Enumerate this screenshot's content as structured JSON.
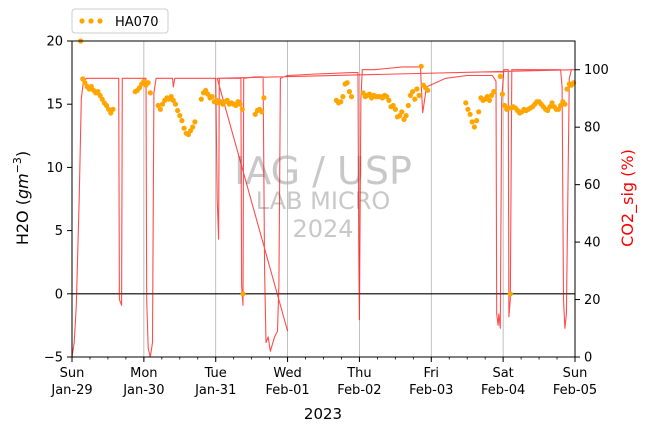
{
  "chart_data": {
    "type": "scatter+line",
    "legend": {
      "position": "top-left",
      "entries": [
        {
          "label": "HA070",
          "color": "#FFA500",
          "style": "dots"
        }
      ]
    },
    "watermark": [
      "IAG / USP",
      "LAB MICRO",
      "2024"
    ],
    "x_axis": {
      "label": "2023",
      "range_days": [
        0,
        7
      ],
      "ticks": [
        {
          "day": 0,
          "dow": "Sun",
          "date": "Jan-29"
        },
        {
          "day": 1,
          "dow": "Mon",
          "date": "Jan-30"
        },
        {
          "day": 2,
          "dow": "Tue",
          "date": "Jan-31"
        },
        {
          "day": 3,
          "dow": "Wed",
          "date": "Feb-01"
        },
        {
          "day": 4,
          "dow": "Thu",
          "date": "Feb-02"
        },
        {
          "day": 5,
          "dow": "Fri",
          "date": "Feb-03"
        },
        {
          "day": 6,
          "dow": "Sat",
          "date": "Feb-04"
        },
        {
          "day": 7,
          "dow": "Sun",
          "date": "Feb-05"
        }
      ],
      "minor_ticks_per_day": 4,
      "grid": true
    },
    "y_left": {
      "label": "H2O (gm⁻³)",
      "label_main": "H2O (",
      "label_unit": "gm",
      "label_exp": "−3",
      "label_close": ")",
      "range": [
        -5,
        20
      ],
      "ticks": [
        -5,
        0,
        5,
        10,
        15,
        20
      ],
      "zero_line": true,
      "color": "#000000"
    },
    "y_right": {
      "label": "CO2_sig (%)",
      "range": [
        0,
        110
      ],
      "ticks": [
        0,
        20,
        40,
        60,
        80,
        100
      ],
      "color": "#FF0000"
    },
    "series": [
      {
        "name": "HA070",
        "axis": "left",
        "type": "scatter",
        "color": "#FFA500",
        "points": [
          [
            0.12,
            20.0
          ],
          [
            0.15,
            17.0
          ],
          [
            0.18,
            16.7
          ],
          [
            0.21,
            16.4
          ],
          [
            0.24,
            16.2
          ],
          [
            0.27,
            16.4
          ],
          [
            0.3,
            16.1
          ],
          [
            0.33,
            15.9
          ],
          [
            0.36,
            16.0
          ],
          [
            0.39,
            15.7
          ],
          [
            0.42,
            15.4
          ],
          [
            0.45,
            15.1
          ],
          [
            0.48,
            14.9
          ],
          [
            0.51,
            14.6
          ],
          [
            0.54,
            14.3
          ],
          [
            0.57,
            14.6
          ],
          [
            0.88,
            16.0
          ],
          [
            0.91,
            16.1
          ],
          [
            0.94,
            16.3
          ],
          [
            0.97,
            16.6
          ],
          [
            1.0,
            16.8
          ],
          [
            1.03,
            16.5
          ],
          [
            1.06,
            16.7
          ],
          [
            1.09,
            15.9
          ],
          [
            1.2,
            14.9
          ],
          [
            1.23,
            14.6
          ],
          [
            1.26,
            15.0
          ],
          [
            1.29,
            15.3
          ],
          [
            1.32,
            15.5
          ],
          [
            1.35,
            15.4
          ],
          [
            1.38,
            15.6
          ],
          [
            1.41,
            15.3
          ],
          [
            1.44,
            15.0
          ],
          [
            1.47,
            14.5
          ],
          [
            1.5,
            14.1
          ],
          [
            1.53,
            13.7
          ],
          [
            1.56,
            13.1
          ],
          [
            1.59,
            12.7
          ],
          [
            1.62,
            12.6
          ],
          [
            1.65,
            12.9
          ],
          [
            1.68,
            13.2
          ],
          [
            1.71,
            13.6
          ],
          [
            1.8,
            15.4
          ],
          [
            1.83,
            15.9
          ],
          [
            1.86,
            16.1
          ],
          [
            1.89,
            15.8
          ],
          [
            1.92,
            15.5
          ],
          [
            1.95,
            15.6
          ],
          [
            1.98,
            15.2
          ],
          [
            2.01,
            15.3
          ],
          [
            2.04,
            15.1
          ],
          [
            2.07,
            15.2
          ],
          [
            2.1,
            15.0
          ],
          [
            2.13,
            15.2
          ],
          [
            2.16,
            15.3
          ],
          [
            2.19,
            15.0
          ],
          [
            2.22,
            15.1
          ],
          [
            2.25,
            15.0
          ],
          [
            2.28,
            14.9
          ],
          [
            2.31,
            15.2
          ],
          [
            2.34,
            15.0
          ],
          [
            2.37,
            14.6
          ],
          [
            2.38,
            0.0
          ],
          [
            2.55,
            14.2
          ],
          [
            2.58,
            14.5
          ],
          [
            2.61,
            14.6
          ],
          [
            2.64,
            14.4
          ],
          [
            2.67,
            15.5
          ],
          [
            3.68,
            15.3
          ],
          [
            3.71,
            15.1
          ],
          [
            3.74,
            15.2
          ],
          [
            3.77,
            15.6
          ],
          [
            3.8,
            16.6
          ],
          [
            3.83,
            16.7
          ],
          [
            3.86,
            16.0
          ],
          [
            3.89,
            15.6
          ],
          [
            4.05,
            15.9
          ],
          [
            4.08,
            15.6
          ],
          [
            4.11,
            15.7
          ],
          [
            4.14,
            15.8
          ],
          [
            4.17,
            15.5
          ],
          [
            4.2,
            15.7
          ],
          [
            4.23,
            15.6
          ],
          [
            4.26,
            15.6
          ],
          [
            4.29,
            15.6
          ],
          [
            4.32,
            15.5
          ],
          [
            4.35,
            15.7
          ],
          [
            4.38,
            15.6
          ],
          [
            4.41,
            15.3
          ],
          [
            4.44,
            14.8
          ],
          [
            4.47,
            14.9
          ],
          [
            4.5,
            14.6
          ],
          [
            4.53,
            14.0
          ],
          [
            4.56,
            14.1
          ],
          [
            4.59,
            14.4
          ],
          [
            4.62,
            13.8
          ],
          [
            4.65,
            14.1
          ],
          [
            4.68,
            14.9
          ],
          [
            4.71,
            15.7
          ],
          [
            4.74,
            16.0
          ],
          [
            4.77,
            15.4
          ],
          [
            4.8,
            16.2
          ],
          [
            4.83,
            15.7
          ],
          [
            4.86,
            18.0
          ],
          [
            4.89,
            16.5
          ],
          [
            4.92,
            16.3
          ],
          [
            4.95,
            16.1
          ],
          [
            5.48,
            15.1
          ],
          [
            5.51,
            14.6
          ],
          [
            5.54,
            14.2
          ],
          [
            5.57,
            13.6
          ],
          [
            5.6,
            13.2
          ],
          [
            5.63,
            13.7
          ],
          [
            5.66,
            14.4
          ],
          [
            5.69,
            15.5
          ],
          [
            5.72,
            15.3
          ],
          [
            5.75,
            15.4
          ],
          [
            5.78,
            15.6
          ],
          [
            5.81,
            15.3
          ],
          [
            5.84,
            15.7
          ],
          [
            5.87,
            16.0
          ],
          [
            5.96,
            17.2
          ],
          [
            5.99,
            15.8
          ],
          [
            6.02,
            14.9
          ],
          [
            6.05,
            14.6
          ],
          [
            6.08,
            14.7
          ],
          [
            6.11,
            14.7
          ],
          [
            6.14,
            14.8
          ],
          [
            6.17,
            14.7
          ],
          [
            6.2,
            14.5
          ],
          [
            6.23,
            14.3
          ],
          [
            6.26,
            14.4
          ],
          [
            6.29,
            14.6
          ],
          [
            6.32,
            14.5
          ],
          [
            6.35,
            14.6
          ],
          [
            6.38,
            14.7
          ],
          [
            6.41,
            14.8
          ],
          [
            6.44,
            15.0
          ],
          [
            6.47,
            15.2
          ],
          [
            6.5,
            15.2
          ],
          [
            6.53,
            15.0
          ],
          [
            6.56,
            14.8
          ],
          [
            6.59,
            14.6
          ],
          [
            6.62,
            14.5
          ],
          [
            6.65,
            14.8
          ],
          [
            6.68,
            15.1
          ],
          [
            6.71,
            14.8
          ],
          [
            6.74,
            14.6
          ],
          [
            6.77,
            14.6
          ],
          [
            6.8,
            14.9
          ],
          [
            6.83,
            15.2
          ],
          [
            6.86,
            15.0
          ],
          [
            6.89,
            16.2
          ],
          [
            6.92,
            16.6
          ],
          [
            6.95,
            16.5
          ],
          [
            6.98,
            16.7
          ],
          [
            6.1,
            0.0
          ]
        ]
      },
      {
        "name": "CO2_sig",
        "axis": "right",
        "type": "line",
        "color": "#FF0000",
        "opacity": 0.7,
        "points": [
          [
            0.0,
            0
          ],
          [
            0.03,
            5
          ],
          [
            0.06,
            18
          ],
          [
            0.1,
            55
          ],
          [
            0.13,
            90
          ],
          [
            0.16,
            96
          ],
          [
            0.2,
            97
          ],
          [
            0.4,
            97
          ],
          [
            0.6,
            97
          ],
          [
            0.65,
            97
          ],
          [
            0.66,
            20
          ],
          [
            0.69,
            18
          ],
          [
            0.7,
            97
          ],
          [
            0.85,
            97
          ],
          [
            1.0,
            97
          ],
          [
            1.03,
            97
          ],
          [
            1.04,
            20
          ],
          [
            1.06,
            3
          ],
          [
            1.09,
            0
          ],
          [
            1.12,
            5
          ],
          [
            1.14,
            92
          ],
          [
            1.17,
            97
          ],
          [
            1.4,
            97
          ],
          [
            1.41,
            94
          ],
          [
            1.43,
            97
          ],
          [
            2.0,
            97
          ],
          [
            2.02,
            55
          ],
          [
            2.04,
            41
          ],
          [
            2.05,
            97
          ],
          [
            2.3,
            97
          ],
          [
            2.34,
            97
          ],
          [
            2.35,
            97
          ],
          [
            2.36,
            25
          ],
          [
            2.38,
            18
          ],
          [
            2.39,
            97
          ],
          [
            2.55,
            97.5
          ],
          [
            2.62,
            97.5
          ],
          [
            2.66,
            97.5
          ],
          [
            2.68,
            30
          ],
          [
            2.7,
            5
          ],
          [
            2.73,
            7
          ],
          [
            2.76,
            2
          ],
          [
            2.82,
            7
          ],
          [
            2.86,
            9
          ],
          [
            2.88,
            25
          ],
          [
            2.9,
            97
          ],
          [
            3.0,
            98
          ],
          [
            3.4,
            98.5
          ],
          [
            3.9,
            99
          ],
          [
            3.98,
            99
          ],
          [
            3.99,
            40
          ],
          [
            4.0,
            13
          ],
          [
            4.02,
            90
          ],
          [
            4.04,
            100
          ],
          [
            4.2,
            100
          ],
          [
            4.6,
            101
          ],
          [
            4.85,
            101
          ],
          [
            4.86,
            95
          ],
          [
            4.88,
            85
          ],
          [
            4.91,
            90
          ],
          [
            4.93,
            94
          ],
          [
            5.2,
            97
          ],
          [
            5.5,
            98
          ],
          [
            5.85,
            98
          ],
          [
            5.9,
            96
          ],
          [
            5.91,
            15
          ],
          [
            5.93,
            11
          ],
          [
            5.94,
            15
          ],
          [
            5.96,
            10
          ],
          [
            5.98,
            90
          ],
          [
            6.01,
            100
          ],
          [
            6.04,
            100
          ],
          [
            6.07,
            100
          ],
          [
            6.08,
            14
          ],
          [
            6.1,
            20
          ],
          [
            6.12,
            100
          ],
          [
            6.3,
            100
          ],
          [
            6.5,
            100
          ],
          [
            6.8,
            100
          ],
          [
            6.82,
            94
          ],
          [
            6.84,
            20
          ],
          [
            6.86,
            10
          ],
          [
            6.88,
            15
          ],
          [
            6.92,
            97
          ],
          [
            6.95,
            100
          ],
          [
            7.0,
            100
          ],
          [
            2.02,
            97
          ],
          [
            3.0,
            9
          ]
        ]
      }
    ]
  }
}
